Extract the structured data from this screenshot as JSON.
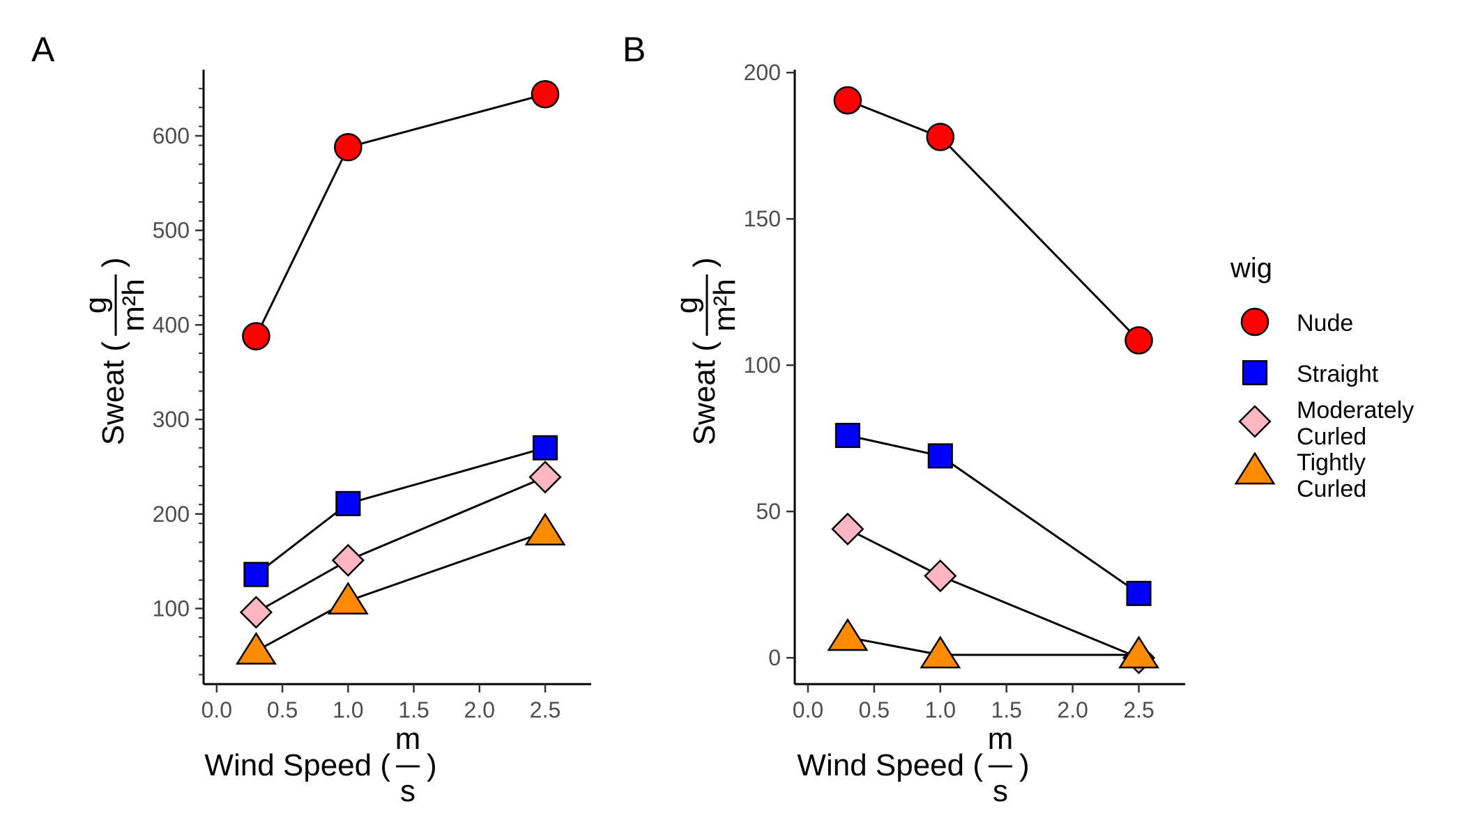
{
  "chart_data": [
    {
      "type": "line",
      "panel": "A",
      "x": [
        0.3,
        1.0,
        2.5
      ],
      "xlim": [
        -0.1,
        2.85
      ],
      "ylim": [
        20,
        670
      ],
      "xticks": [
        "0.0",
        "0.5",
        "1.0",
        "1.5",
        "2.0",
        "2.5"
      ],
      "yticks": [
        "100",
        "200",
        "300",
        "400",
        "500",
        "600"
      ],
      "xlabel": {
        "prefix": "Wind Speed (",
        "num": "m",
        "den": "s",
        "suffix": ")"
      },
      "ylabel": {
        "prefix": "Sweat (",
        "num": "g",
        "den": "m²h",
        "suffix": ")"
      },
      "series": [
        {
          "name": "Nude",
          "values": [
            388,
            588,
            644
          ]
        },
        {
          "name": "Straight",
          "values": [
            136,
            211,
            270
          ]
        },
        {
          "name": "Moderately Curled",
          "values": [
            96,
            151,
            239
          ]
        },
        {
          "name": "Tightly Curled",
          "values": [
            55,
            108,
            181
          ]
        }
      ]
    },
    {
      "type": "line",
      "panel": "B",
      "x": [
        0.3,
        1.0,
        2.5
      ],
      "xlim": [
        -0.1,
        2.85
      ],
      "ylim": [
        -9,
        201
      ],
      "xticks": [
        "0.0",
        "0.5",
        "1.0",
        "1.5",
        "2.0",
        "2.5"
      ],
      "yticks": [
        "0",
        "50",
        "100",
        "150",
        "200"
      ],
      "xlabel": {
        "prefix": "Wind Speed (",
        "num": "m",
        "den": "s",
        "suffix": ")"
      },
      "ylabel": {
        "prefix": "Sweat (",
        "num": "g",
        "den": "m²h",
        "suffix": ")"
      },
      "series": [
        {
          "name": "Nude",
          "values": [
            190.5,
            178,
            108.5
          ]
        },
        {
          "name": "Straight",
          "values": [
            76,
            69,
            22
          ]
        },
        {
          "name": "Moderately Curled",
          "values": [
            44,
            28,
            0
          ]
        },
        {
          "name": "Tightly Curled",
          "values": [
            7,
            1,
            1
          ]
        }
      ]
    }
  ],
  "legend": {
    "title": "wig",
    "entries": [
      {
        "label": "Nude",
        "shape": "circle",
        "color": "#ff0000"
      },
      {
        "label": "Straight",
        "shape": "square",
        "color": "#0000ff"
      },
      {
        "label": "Moderately Curled",
        "shape": "diamond",
        "color": "#ffb6c1"
      },
      {
        "label": "Tightly Curled",
        "shape": "triangle",
        "color": "#ff8c00"
      }
    ]
  },
  "panel_labels": [
    "A",
    "B"
  ]
}
